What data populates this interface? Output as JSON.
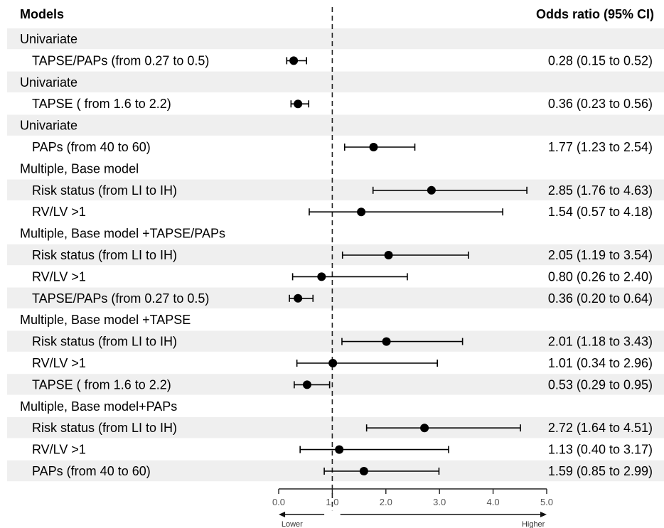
{
  "header": {
    "models": "Models",
    "odds_ratio": "Odds ratio (95% CI)"
  },
  "colors": {
    "stripe": "#efefef",
    "marker": "#000000",
    "text": "#111111"
  },
  "chart_data": {
    "type": "forest",
    "xlim": [
      0,
      5
    ],
    "xticks": [
      {
        "value": 0,
        "label": "0.0"
      },
      {
        "value": 1,
        "label": "1.0"
      },
      {
        "value": 2,
        "label": "2.0"
      },
      {
        "value": 3,
        "label": "3.0"
      },
      {
        "value": 4,
        "label": "4.0"
      },
      {
        "value": 5,
        "label": "5.0"
      }
    ],
    "reference_line": 1,
    "direction_labels": {
      "lower": "Lower",
      "higher": "Higher"
    },
    "rows": [
      {
        "kind": "group",
        "label": "Univariate",
        "stripe": true
      },
      {
        "kind": "item",
        "label": "TAPSE/PAPs (from 0.27 to 0.5)",
        "or": 0.28,
        "lo": 0.15,
        "hi": 0.52,
        "text": "0.28 (0.15 to 0.52)",
        "stripe": false
      },
      {
        "kind": "group",
        "label": "Univariate",
        "stripe": true
      },
      {
        "kind": "item",
        "label": "TAPSE ( from 1.6 to 2.2)",
        "or": 0.36,
        "lo": 0.23,
        "hi": 0.56,
        "text": "0.36 (0.23 to 0.56)",
        "stripe": false
      },
      {
        "kind": "group",
        "label": "Univariate",
        "stripe": true
      },
      {
        "kind": "item",
        "label": "PAPs (from 40 to 60)",
        "or": 1.77,
        "lo": 1.23,
        "hi": 2.54,
        "text": "1.77 (1.23 to 2.54)",
        "stripe": false
      },
      {
        "kind": "group",
        "label": "Multiple, Base model",
        "stripe": false
      },
      {
        "kind": "item",
        "label": "Risk status (from LI to IH)",
        "or": 2.85,
        "lo": 1.76,
        "hi": 4.63,
        "text": "2.85 (1.76 to 4.63)",
        "stripe": true
      },
      {
        "kind": "item",
        "label": "RV/LV >1",
        "or": 1.54,
        "lo": 0.57,
        "hi": 4.18,
        "text": "1.54 (0.57 to 4.18)",
        "stripe": false
      },
      {
        "kind": "group",
        "label": "Multiple, Base model +TAPSE/PAPs",
        "stripe": false
      },
      {
        "kind": "item",
        "label": "Risk status (from LI to IH)",
        "or": 2.05,
        "lo": 1.19,
        "hi": 3.54,
        "text": "2.05 (1.19 to 3.54)",
        "stripe": true
      },
      {
        "kind": "item",
        "label": "RV/LV >1",
        "or": 0.8,
        "lo": 0.26,
        "hi": 2.4,
        "text": "0.80 (0.26 to 2.40)",
        "stripe": false
      },
      {
        "kind": "item",
        "label": "TAPSE/PAPs (from 0.27 to 0.5)",
        "or": 0.36,
        "lo": 0.2,
        "hi": 0.64,
        "text": "0.36 (0.20 to 0.64)",
        "stripe": true
      },
      {
        "kind": "group",
        "label": "Multiple, Base model +TAPSE",
        "stripe": false
      },
      {
        "kind": "item",
        "label": "Risk status (from LI to IH)",
        "or": 2.01,
        "lo": 1.18,
        "hi": 3.43,
        "text": "2.01 (1.18 to 3.43)",
        "stripe": true
      },
      {
        "kind": "item",
        "label": "RV/LV >1",
        "or": 1.01,
        "lo": 0.34,
        "hi": 2.96,
        "text": "1.01 (0.34 to 2.96)",
        "stripe": false
      },
      {
        "kind": "item",
        "label": "TAPSE ( from 1.6 to 2.2)",
        "or": 0.53,
        "lo": 0.29,
        "hi": 0.95,
        "text": "0.53 (0.29 to 0.95)",
        "stripe": true
      },
      {
        "kind": "group",
        "label": "Multiple, Base model+PAPs",
        "stripe": false
      },
      {
        "kind": "item",
        "label": "Risk status (from LI to IH)",
        "or": 2.72,
        "lo": 1.64,
        "hi": 4.51,
        "text": "2.72 (1.64 to 4.51)",
        "stripe": true
      },
      {
        "kind": "item",
        "label": "RV/LV >1",
        "or": 1.13,
        "lo": 0.4,
        "hi": 3.17,
        "text": "1.13 (0.40 to 3.17)",
        "stripe": false
      },
      {
        "kind": "item",
        "label": "PAPs (from 40 to 60)",
        "or": 1.59,
        "lo": 0.85,
        "hi": 2.99,
        "text": "1.59 (0.85 to 2.99)",
        "stripe": true
      }
    ]
  }
}
